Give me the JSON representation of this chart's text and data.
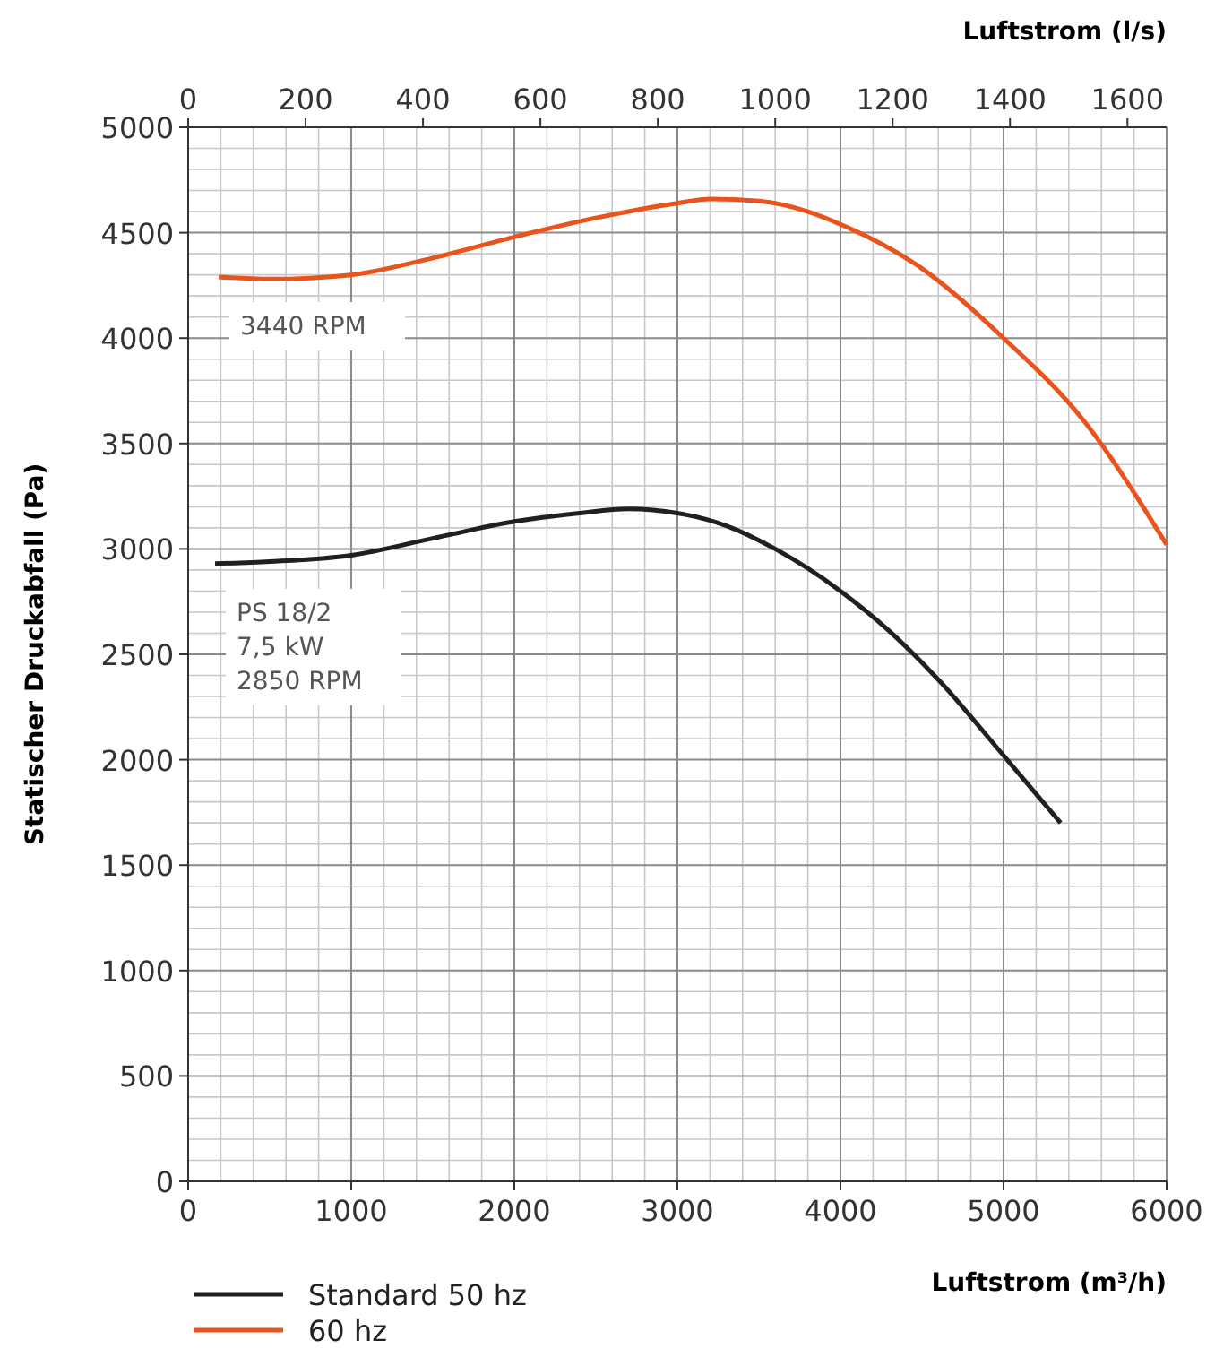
{
  "chart_data": {
    "type": "line",
    "xlabel": "Luftstrom (m³/h)",
    "x2label": "Luftstrom (l/s)",
    "ylabel": "Statischer Druckabfall (Pa)",
    "xlim": [
      0,
      6000
    ],
    "xticks": [
      0,
      1000,
      2000,
      3000,
      4000,
      5000,
      6000
    ],
    "x2lim": [
      0,
      1666.7
    ],
    "x2ticks": [
      0,
      200,
      400,
      600,
      800,
      1000,
      1200,
      1400,
      1600
    ],
    "ylim": [
      0,
      5000
    ],
    "yticks": [
      0,
      500,
      1000,
      1500,
      2000,
      2500,
      3000,
      3500,
      4000,
      4500,
      5000
    ],
    "grid": true,
    "legend": "bottom left",
    "line_style": "solid",
    "series": [
      {
        "name": "Standard 50 hz",
        "color": "#231f20",
        "x": [
          165,
          500,
          1000,
          1500,
          2000,
          2400,
          2700,
          3000,
          3300,
          3600,
          4000,
          4300,
          4600,
          5000,
          5350
        ],
        "values": [
          2930,
          2940,
          2970,
          3050,
          3130,
          3170,
          3190,
          3170,
          3110,
          3000,
          2800,
          2610,
          2380,
          2020,
          1700
        ]
      },
      {
        "name": "60 hz",
        "color": "#e8541c",
        "x": [
          187,
          500,
          1000,
          1500,
          2000,
          2500,
          3000,
          3200,
          3500,
          3800,
          4000,
          4500,
          5000,
          5500,
          6000
        ],
        "values": [
          4290,
          4280,
          4300,
          4380,
          4480,
          4570,
          4640,
          4660,
          4650,
          4600,
          4540,
          4330,
          4000,
          3600,
          3020
        ]
      }
    ],
    "annotations": [
      {
        "text": "3440 RPM",
        "x": 187,
        "y": 4290
      },
      {
        "text": "PS 18/2\n7,5 kW\n2850 RPM",
        "x": 165,
        "y": 2930
      }
    ]
  }
}
